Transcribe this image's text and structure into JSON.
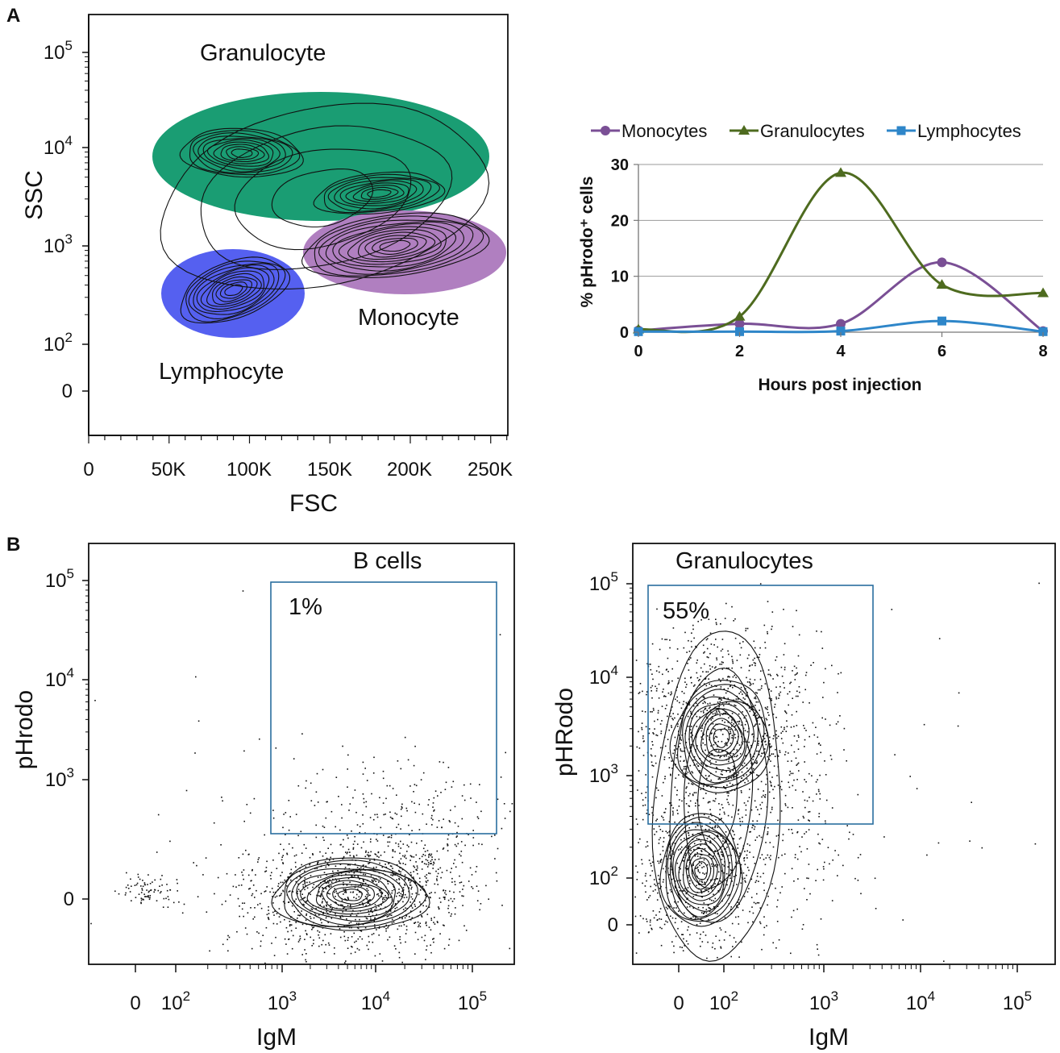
{
  "panels": {
    "a": "A",
    "b": "B"
  },
  "scatter_a": {
    "ylabel": "SSC",
    "xlabel": "FSC",
    "y_ticks": [
      {
        "exp": "5"
      },
      {
        "exp": "4"
      },
      {
        "exp": "3"
      },
      {
        "exp": "2"
      },
      {
        "label": "0"
      }
    ],
    "x_ticks": [
      "0",
      "50K",
      "100K",
      "150K",
      "200K",
      "250K"
    ],
    "gates": [
      {
        "label": "Granulocyte",
        "color": "#1a9d73"
      },
      {
        "label": "Monocyte",
        "color": "#b07fc0"
      },
      {
        "label": "Lymphocyte",
        "color": "#5560f0"
      }
    ]
  },
  "chart_data": {
    "type": "line",
    "xlabel": "Hours post injection",
    "ylabel": "% pHrodo⁺ cells",
    "x": [
      0,
      2,
      4,
      6,
      8
    ],
    "ylim": [
      0,
      30
    ],
    "xlim": [
      0,
      8
    ],
    "y_ticks": [
      0,
      10,
      20,
      30
    ],
    "grid": true,
    "legend_position": "top",
    "series": [
      {
        "name": "Monocytes",
        "color": "#7a4f95",
        "marker": "circle",
        "values": [
          0.3,
          1.5,
          1.5,
          12.5,
          0.2
        ]
      },
      {
        "name": "Granulocytes",
        "color": "#4e6b1f",
        "marker": "triangle",
        "values": [
          0.5,
          2.8,
          28.5,
          8.5,
          7.0
        ]
      },
      {
        "name": "Lymphocytes",
        "color": "#2e86c9",
        "marker": "square",
        "values": [
          0.1,
          0.1,
          0.2,
          2.0,
          0.1
        ]
      }
    ]
  },
  "bcells": {
    "title": "B cells",
    "gate_percent": "1%",
    "ylabel": "pHrodo",
    "xlabel": "IgM",
    "y_ticks": [
      {
        "exp": "5"
      },
      {
        "exp": "4"
      },
      {
        "exp": "3"
      },
      {
        "label": "0"
      }
    ],
    "x_ticks": [
      {
        "label": "0"
      },
      {
        "exp": "2"
      },
      {
        "exp": "3"
      },
      {
        "exp": "4"
      },
      {
        "exp": "5"
      }
    ]
  },
  "granulocytes": {
    "title": "Granulocytes",
    "gate_percent": "55%",
    "ylabel": "pHRodo",
    "xlabel": "IgM",
    "y_ticks": [
      {
        "exp": "5"
      },
      {
        "exp": "4"
      },
      {
        "exp": "3"
      },
      {
        "exp": "2"
      },
      {
        "label": "0"
      }
    ],
    "x_ticks": [
      {
        "label": "0"
      },
      {
        "exp": "2"
      },
      {
        "exp": "3"
      },
      {
        "exp": "4"
      },
      {
        "exp": "5"
      }
    ]
  },
  "tick_base": "10",
  "gate_box_color": "#2a6e9e"
}
